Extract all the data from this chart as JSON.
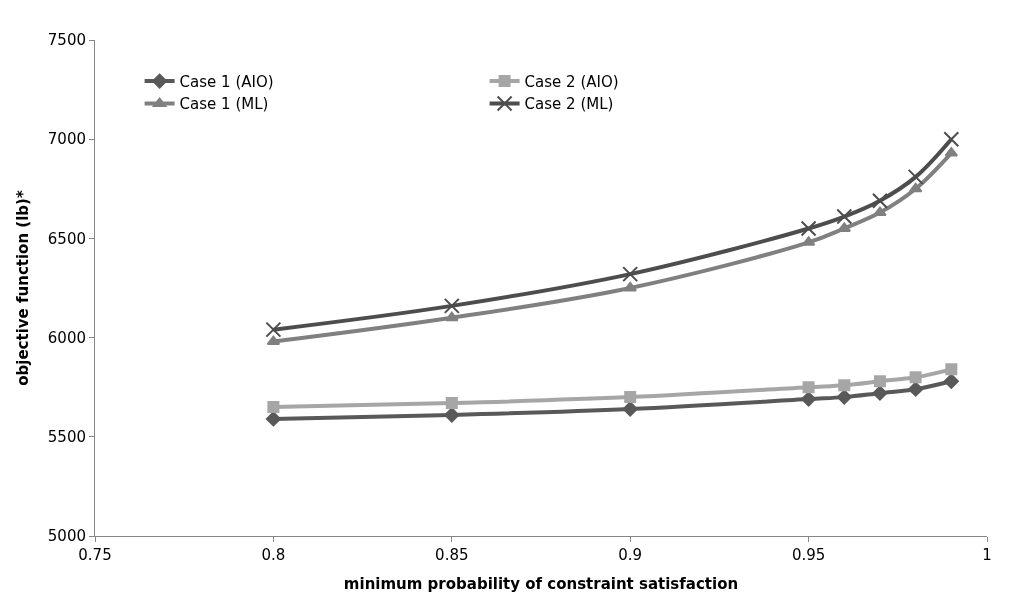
{
  "chart_data": {
    "type": "line",
    "xlabel": "minimum probability of constraint satisfaction",
    "ylabel": "objective function (lb)*",
    "x": [
      0.8,
      0.85,
      0.9,
      0.95,
      0.96,
      0.97,
      0.98,
      0.99
    ],
    "series": [
      {
        "name": "Case 1 (AIO)",
        "color": "#595959",
        "marker": "diamond",
        "values": [
          5590,
          5610,
          5640,
          5690,
          5700,
          5720,
          5740,
          5780
        ]
      },
      {
        "name": "Case 2 (AIO)",
        "color": "#a6a6a6",
        "marker": "square",
        "values": [
          5650,
          5670,
          5700,
          5750,
          5760,
          5780,
          5800,
          5840
        ]
      },
      {
        "name": "Case 1 (ML)",
        "color": "#808080",
        "marker": "triangle",
        "values": [
          5980,
          6100,
          6250,
          6480,
          6550,
          6630,
          6750,
          6930
        ]
      },
      {
        "name": "Case 2 (ML)",
        "color": "#4d4d4d",
        "marker": "cross",
        "values": [
          6040,
          6160,
          6320,
          6550,
          6610,
          6690,
          6810,
          7000
        ]
      }
    ],
    "xlim": [
      0.75,
      1
    ],
    "xticks": [
      0.75,
      0.8,
      0.85,
      0.9,
      0.95,
      1
    ],
    "ylim": [
      5000,
      7500
    ],
    "yticks": [
      5000,
      5500,
      6000,
      6500,
      7000,
      7500
    ],
    "legend": "top left"
  }
}
